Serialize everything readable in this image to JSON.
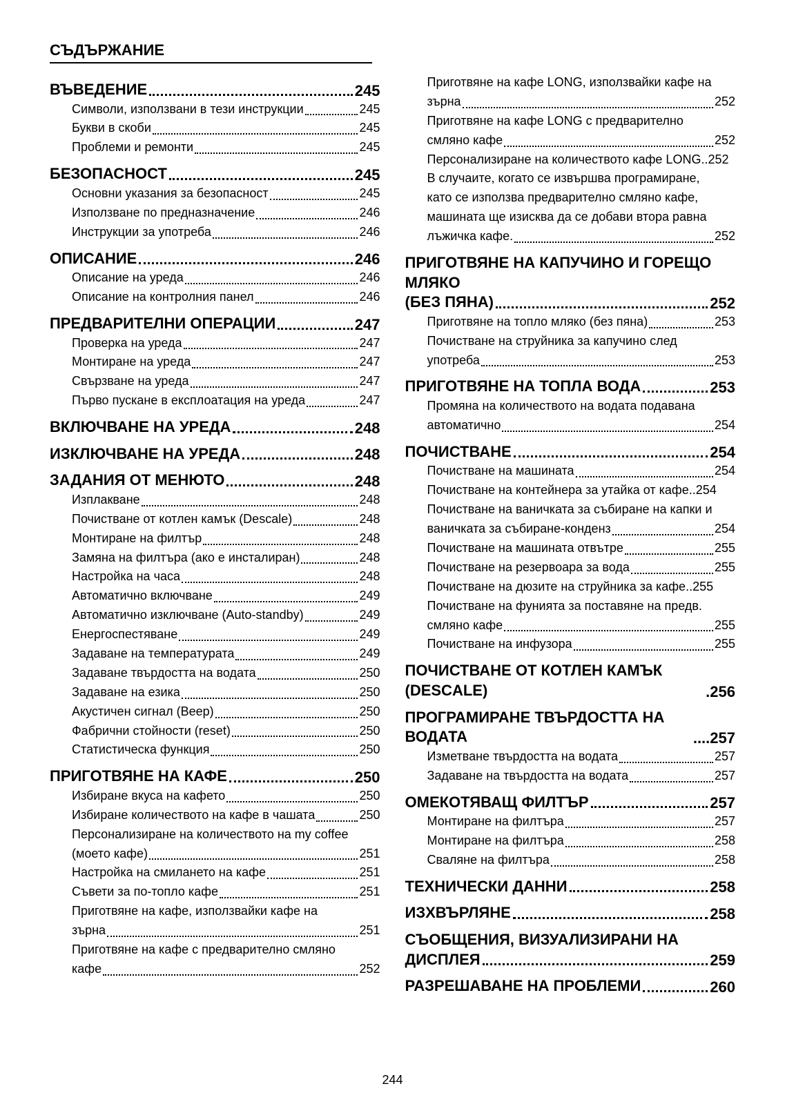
{
  "page_title": "СЪДЪРЖАНИЕ",
  "page_number": "244",
  "col1": [
    {
      "type": "section",
      "label": "ВЪВЕДЕНИЕ",
      "pg": "245"
    },
    {
      "type": "sub",
      "label": "Символи, използвани в тези инструкции",
      "pg": "245"
    },
    {
      "type": "sub",
      "label": "Букви в скоби",
      "pg": "245"
    },
    {
      "type": "sub",
      "label": "Проблеми и ремонти",
      "pg": "245"
    },
    {
      "type": "section",
      "label": "БЕЗОПАСНОСТ",
      "pg": "245"
    },
    {
      "type": "sub",
      "label": "Основни указания за безопасност",
      "pg": "245"
    },
    {
      "type": "sub",
      "label": "Използване по предназначение",
      "pg": "246"
    },
    {
      "type": "sub",
      "label": "Инструкции за употреба",
      "pg": "246"
    },
    {
      "type": "section",
      "label": "ОПИСАНИЕ",
      "pg": "246"
    },
    {
      "type": "sub",
      "label": "Описание на уреда",
      "pg": "246"
    },
    {
      "type": "sub",
      "label": "Описание на контролния панел",
      "pg": "246"
    },
    {
      "type": "section",
      "label": "ПРЕДВАРИТЕЛНИ ОПЕРАЦИИ",
      "pg": "247"
    },
    {
      "type": "sub",
      "label": "Проверка на уреда",
      "pg": "247"
    },
    {
      "type": "sub",
      "label": "Монтиране на уреда",
      "pg": "247"
    },
    {
      "type": "sub",
      "label": "Свързване на уреда",
      "pg": "247"
    },
    {
      "type": "sub",
      "label": "Първо пускане в експлоатация на уреда",
      "pg": "247"
    },
    {
      "type": "section",
      "label": "ВКЛЮЧВАНЕ НА УРЕДА",
      "pg": "248"
    },
    {
      "type": "section",
      "label": "ИЗКЛЮЧВАНЕ НА УРЕДА",
      "pg": "248"
    },
    {
      "type": "section",
      "label": "ЗАДАНИЯ ОТ МЕНЮТО",
      "pg": "248"
    },
    {
      "type": "sub",
      "label": "Изплакване",
      "pg": "248"
    },
    {
      "type": "sub",
      "label": "Почистване от котлен камък (Descale)",
      "pg": "248"
    },
    {
      "type": "sub",
      "label": "Монтиране на филтър",
      "pg": "248"
    },
    {
      "type": "sub",
      "label": "Замяна на филтъра (ако е инсталиран)",
      "pg": "248"
    },
    {
      "type": "sub",
      "label": "Настройка на часа",
      "pg": "248"
    },
    {
      "type": "sub",
      "label": "Автоматично включване",
      "pg": "249"
    },
    {
      "type": "sub",
      "label": "Автоматично изключване (Auto-standby)",
      "pg": "249"
    },
    {
      "type": "sub",
      "label": "Енергоспестяване",
      "pg": "249"
    },
    {
      "type": "sub",
      "label": "Задаване на температурата",
      "pg": "249"
    },
    {
      "type": "sub",
      "label": "Задаване твърдостта на водата",
      "pg": "250"
    },
    {
      "type": "sub",
      "label": "Задаване на езика",
      "pg": "250"
    },
    {
      "type": "sub",
      "label": "Акустичен сигнал (Beep)",
      "pg": "250"
    },
    {
      "type": "sub",
      "label": "Фабрични стойности (reset)",
      "pg": "250"
    },
    {
      "type": "sub",
      "label": "Статистическа функция",
      "pg": "250"
    },
    {
      "type": "section",
      "label": "ПРИГОТВЯНЕ НА КАФЕ",
      "pg": "250"
    },
    {
      "type": "sub",
      "label": "Избиране вкуса на кафето",
      "pg": "250"
    },
    {
      "type": "sub",
      "label": "Избиране количеството на кафе в чашата",
      "pg": "250"
    },
    {
      "type": "wrap",
      "text": "Персонализиране на количеството на my coffee"
    },
    {
      "type": "sub",
      "label": "(моето кафе)",
      "pg": "251"
    },
    {
      "type": "sub",
      "label": "Настройка на смилането на кафе",
      "pg": "251"
    },
    {
      "type": "sub",
      "label": "Съвети за по-топло кафе",
      "pg": "251"
    },
    {
      "type": "wrap",
      "text": "Приготвяне на кафе, използвайки кафе на"
    },
    {
      "type": "sub",
      "label": "зърна",
      "pg": "251"
    },
    {
      "type": "wrap",
      "text": "Приготвяне на кафе с предварително смляно"
    },
    {
      "type": "sub",
      "label": "кафе",
      "pg": "252"
    }
  ],
  "col2": [
    {
      "type": "wrap",
      "text": "Приготвяне на кафе LONG, използвайки кафе на"
    },
    {
      "type": "sub",
      "label": "зърна",
      "pg": "252"
    },
    {
      "type": "wrap",
      "text": "Приготвяне на кафе LONG с предварително"
    },
    {
      "type": "sub",
      "label": "смляно кафе",
      "pg": "252"
    },
    {
      "type": "sub",
      "label": "Персонализиране на количеството кафе LONG",
      "pg": "252",
      "tight": true
    },
    {
      "type": "wrap",
      "text": "В случаите, когато се извършва програмиране,"
    },
    {
      "type": "wrap",
      "text": "като се използва предварително смляно кафе,"
    },
    {
      "type": "wrap",
      "text": "машината ще изисква да се добави втора равна"
    },
    {
      "type": "sub",
      "label": "лъжичка кафе.",
      "pg": "252"
    },
    {
      "type": "section_ml",
      "lines": [
        "ПРИГОТВЯНЕ НА КАПУЧИНО И ГОРЕЩО МЛЯКО",
        "(БЕЗ ПЯНА)"
      ],
      "pg": "252"
    },
    {
      "type": "sub",
      "label": "Приготвяне на топло мляко (без пяна)",
      "pg": "253"
    },
    {
      "type": "wrap",
      "text": "Почистване на струйника за капучино след"
    },
    {
      "type": "sub",
      "label": "употреба",
      "pg": "253"
    },
    {
      "type": "section",
      "label": "ПРИГОТВЯНЕ НА ТОПЛА ВОДА",
      "pg": "253"
    },
    {
      "type": "wrap",
      "text": "Промяна на количеството на водата подавана"
    },
    {
      "type": "sub",
      "label": "автоматично",
      "pg": "254"
    },
    {
      "type": "section",
      "label": "ПОЧИСТВАНЕ",
      "pg": "254"
    },
    {
      "type": "sub",
      "label": "Почистване на машината",
      "pg": "254"
    },
    {
      "type": "sub",
      "label": "Почистване на контейнера за утайка от кафе",
      "pg": "254",
      "tight": true
    },
    {
      "type": "wrap",
      "text": "Почистване на ваничката за събиране на капки и"
    },
    {
      "type": "sub",
      "label": "ваничката за събиране-конденз",
      "pg": "254"
    },
    {
      "type": "sub",
      "label": "Почистване на машината отвътре",
      "pg": "255"
    },
    {
      "type": "sub",
      "label": "Почистване на резервоара за вода",
      "pg": "255"
    },
    {
      "type": "sub",
      "label": "Почистване на дюзите на струйника за кафе",
      "pg": "255",
      "tight": true
    },
    {
      "type": "wrap",
      "text": "Почистване на фунията за поставяне на предв."
    },
    {
      "type": "sub",
      "label": "смляно кафе",
      "pg": "255"
    },
    {
      "type": "sub",
      "label": "Почистване на инфузора",
      "pg": "255"
    },
    {
      "type": "section",
      "label": "ПОЧИСТВАНЕ ОТ КОТЛЕН КАМЪК (DESCALE)",
      "pg": "256",
      "dot": true
    },
    {
      "type": "section",
      "label": "ПРОГРАМИРАНЕ ТВЪРДОСТТА НА ВОДАТА",
      "pg": "257",
      "ell": true
    },
    {
      "type": "sub",
      "label": "Изметване твърдостта на водата",
      "pg": "257"
    },
    {
      "type": "sub",
      "label": "Задаване на твърдостта на водата",
      "pg": "257"
    },
    {
      "type": "section",
      "label": "ОМЕКОТЯВАЩ ФИЛТЪР",
      "pg": "257"
    },
    {
      "type": "sub",
      "label": "Монтиране на филтъра",
      "pg": "257"
    },
    {
      "type": "sub",
      "label": "Монтиране на филтъра",
      "pg": "258"
    },
    {
      "type": "sub",
      "label": "Сваляне на филтъра",
      "pg": "258"
    },
    {
      "type": "section",
      "label": "ТЕХНИЧЕСКИ ДАННИ",
      "pg": "258"
    },
    {
      "type": "section",
      "label": "ИЗХВЪРЛЯНЕ",
      "pg": "258"
    },
    {
      "type": "section_ml",
      "lines": [
        "СЪОБЩЕНИЯ, ВИЗУАЛИЗИРАНИ НА",
        "ДИСПЛЕЯ"
      ],
      "pg": "259"
    },
    {
      "type": "section",
      "label": "РАЗРЕШАВАНЕ НА ПРОБЛЕМИ",
      "pg": "260"
    }
  ]
}
